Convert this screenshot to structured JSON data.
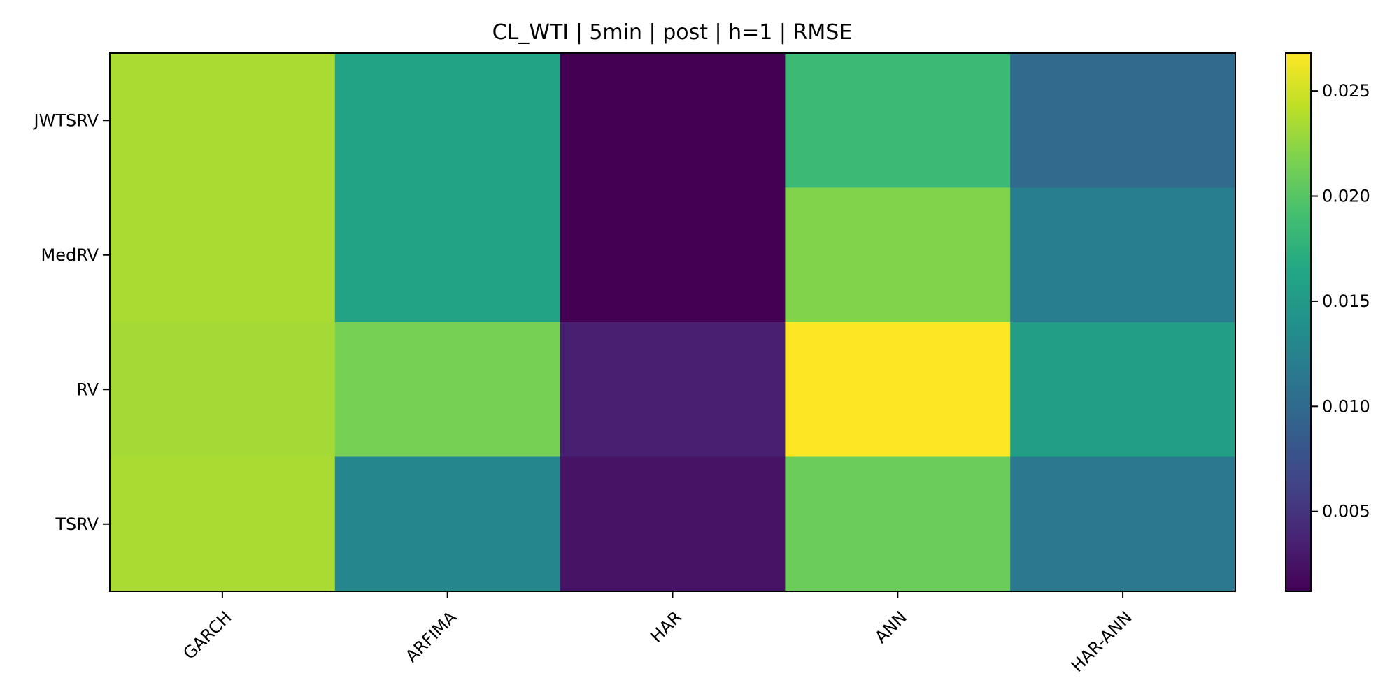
{
  "chart_data": {
    "type": "heatmap",
    "title": "CL_WTI | 5min | post | h=1 | RMSE",
    "xlabel": "",
    "ylabel": "",
    "x_categories": [
      "GARCH",
      "ARFIMA",
      "HAR",
      "ANN",
      "HAR-ANN"
    ],
    "y_categories": [
      "JWTSRV",
      "MedRV",
      "RV",
      "TSRV"
    ],
    "values": [
      [
        0.0235,
        0.016,
        0.0012,
        0.0185,
        0.01
      ],
      [
        0.0235,
        0.016,
        0.0012,
        0.022,
        0.012
      ],
      [
        0.0233,
        0.0215,
        0.0035,
        0.0268,
        0.0155
      ],
      [
        0.0235,
        0.013,
        0.0025,
        0.021,
        0.0115
      ]
    ],
    "colorbar": {
      "min": 0.0012,
      "max": 0.0268,
      "ticks": [
        0.005,
        0.01,
        0.015,
        0.02,
        0.025
      ],
      "tick_labels": [
        "0.005",
        "0.010",
        "0.015",
        "0.020",
        "0.025"
      ],
      "colormap": "viridis"
    },
    "grid": false
  }
}
